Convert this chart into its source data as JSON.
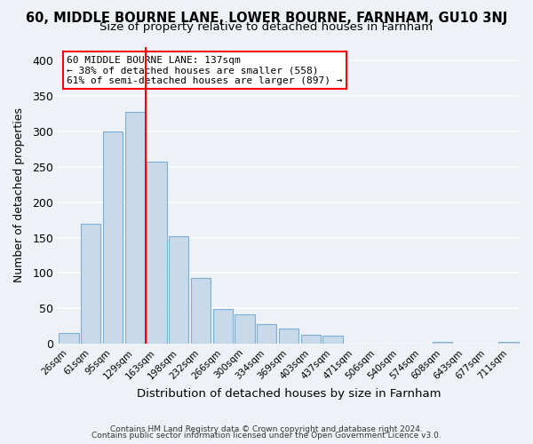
{
  "title": "60, MIDDLE BOURNE LANE, LOWER BOURNE, FARNHAM, GU10 3NJ",
  "subtitle": "Size of property relative to detached houses in Farnham",
  "xlabel": "Distribution of detached houses by size in Farnham",
  "ylabel": "Number of detached properties",
  "bar_color": "#c8d9ea",
  "bar_edge_color": "#7bafd4",
  "bin_labels": [
    "26sqm",
    "61sqm",
    "95sqm",
    "129sqm",
    "163sqm",
    "198sqm",
    "232sqm",
    "266sqm",
    "300sqm",
    "334sqm",
    "369sqm",
    "403sqm",
    "437sqm",
    "471sqm",
    "506sqm",
    "540sqm",
    "574sqm",
    "608sqm",
    "643sqm",
    "677sqm",
    "711sqm"
  ],
  "bar_heights": [
    15,
    170,
    300,
    328,
    257,
    152,
    93,
    49,
    42,
    27,
    21,
    13,
    11,
    0,
    0,
    0,
    0,
    3,
    0,
    0,
    3
  ],
  "ylim": [
    0,
    420
  ],
  "yticks": [
    0,
    50,
    100,
    150,
    200,
    250,
    300,
    350,
    400
  ],
  "red_line_x": 3.5,
  "annotation_title": "60 MIDDLE BOURNE LANE: 137sqm",
  "annotation_line1": "← 38% of detached houses are smaller (558)",
  "annotation_line2": "61% of semi-detached houses are larger (897) →",
  "footer1": "Contains HM Land Registry data © Crown copyright and database right 2024.",
  "footer2": "Contains public sector information licensed under the Open Government Licence v3.0.",
  "background_color": "#eef2f7",
  "grid_color": "#ffffff",
  "title_fontsize": 10.5,
  "subtitle_fontsize": 9.5,
  "ylabel_fontsize": 9,
  "xlabel_fontsize": 9.5
}
